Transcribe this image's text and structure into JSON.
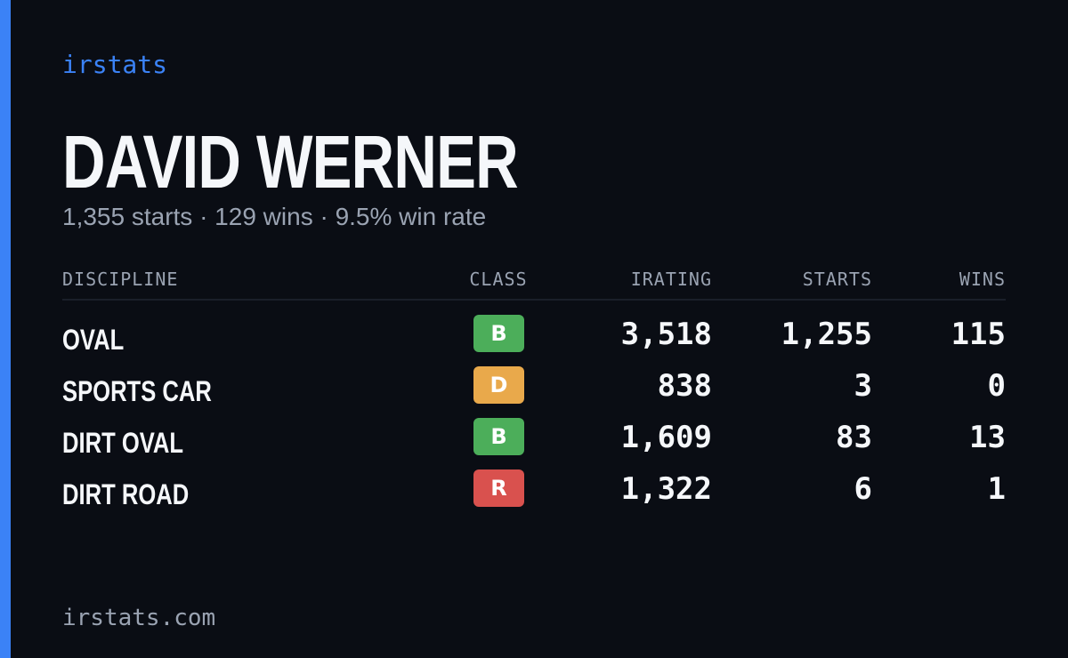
{
  "brand": "irstats",
  "driver": {
    "name": "DAVID WERNER",
    "summary": "1,355 starts · 129 wins · 9.5% win rate"
  },
  "table": {
    "headers": [
      "DISCIPLINE",
      "CLASS",
      "IRATING",
      "STARTS",
      "WINS"
    ],
    "rows": [
      {
        "discipline": "OVAL",
        "class": "B",
        "class_color": "#4cae5a",
        "irating": "3,518",
        "starts": "1,255",
        "wins": "115"
      },
      {
        "discipline": "SPORTS CAR",
        "class": "D",
        "class_color": "#e9a94b",
        "irating": "838",
        "starts": "3",
        "wins": "0"
      },
      {
        "discipline": "DIRT OVAL",
        "class": "B",
        "class_color": "#4cae5a",
        "irating": "1,609",
        "starts": "83",
        "wins": "13"
      },
      {
        "discipline": "DIRT ROAD",
        "class": "R",
        "class_color": "#d9514e",
        "irating": "1,322",
        "starts": "6",
        "wins": "1"
      }
    ]
  },
  "footer": "irstats.com"
}
